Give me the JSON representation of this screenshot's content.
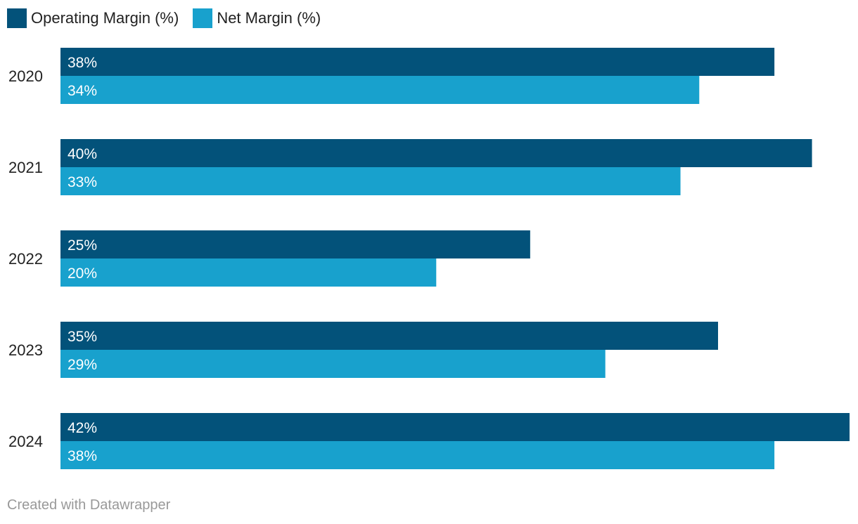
{
  "legend": [
    {
      "label": "Operating Margin (%)",
      "color": "#03527a"
    },
    {
      "label": "Net Margin (%)",
      "color": "#18a1cd"
    }
  ],
  "footer": {
    "text": "Created with Datawrapper"
  },
  "chart_data": {
    "type": "bar",
    "orientation": "horizontal",
    "categories": [
      "2020",
      "2021",
      "2022",
      "2023",
      "2024"
    ],
    "series": [
      {
        "name": "Operating Margin (%)",
        "color": "#03527a",
        "values": [
          38,
          40,
          25,
          35,
          42
        ],
        "labels": [
          "38%",
          "40%",
          "25%",
          "35%",
          "42%"
        ]
      },
      {
        "name": "Net Margin (%)",
        "color": "#18a1cd",
        "values": [
          34,
          33,
          20,
          29,
          38
        ],
        "labels": [
          "34%",
          "33%",
          "20%",
          "29%",
          "38%"
        ]
      }
    ],
    "title": "",
    "xlabel": "",
    "ylabel": "",
    "xlim": [
      0,
      42
    ],
    "grid": false,
    "legend_position": "top-left"
  }
}
